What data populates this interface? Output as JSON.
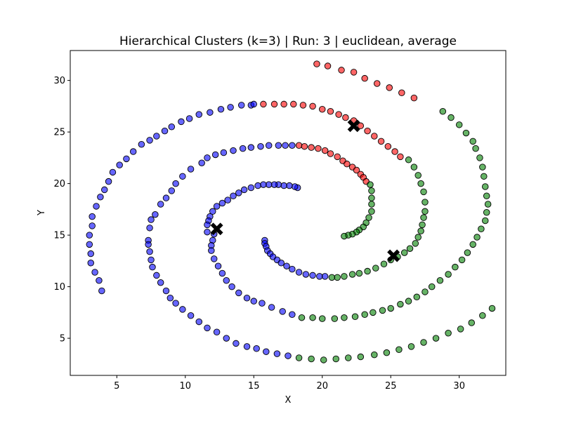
{
  "chart_data": {
    "type": "scatter",
    "title": "Hierarchical Clusters (k=3) | Run: 3 | euclidean, average",
    "xlabel": "X",
    "ylabel": "Y",
    "xlim": [
      1.6,
      33.4
    ],
    "ylim": [
      1.4,
      32.9
    ],
    "xticks": [
      5,
      10,
      15,
      20,
      25,
      30
    ],
    "yticks": [
      5,
      10,
      15,
      20,
      25,
      30
    ],
    "grid": false,
    "colors": {
      "blue": "#0000ff",
      "red": "#ff0000",
      "green": "#008000",
      "centroid": "#000000",
      "point_edge": "#000000"
    },
    "series": [
      {
        "color": "blue",
        "points": [
          [
            3.9,
            9.6
          ],
          [
            3.7,
            10.6
          ],
          [
            3.4,
            11.4
          ],
          [
            3.1,
            12.3
          ],
          [
            3.1,
            13.2
          ],
          [
            3.0,
            14.1
          ],
          [
            3.0,
            15.0
          ],
          [
            3.2,
            15.9
          ],
          [
            3.2,
            16.8
          ],
          [
            3.5,
            17.8
          ],
          [
            3.8,
            18.7
          ],
          [
            4.1,
            19.4
          ],
          [
            4.4,
            20.2
          ],
          [
            4.7,
            21.1
          ],
          [
            5.2,
            21.8
          ],
          [
            5.7,
            22.4
          ],
          [
            6.2,
            23.1
          ],
          [
            6.8,
            23.8
          ],
          [
            7.4,
            24.2
          ],
          [
            7.9,
            24.6
          ],
          [
            8.5,
            25.1
          ],
          [
            9.0,
            25.5
          ],
          [
            9.7,
            26.0
          ],
          [
            10.3,
            26.3
          ],
          [
            11.0,
            26.7
          ],
          [
            11.8,
            26.9
          ],
          [
            12.6,
            27.2
          ],
          [
            13.3,
            27.4
          ],
          [
            14.1,
            27.6
          ],
          [
            14.8,
            27.6
          ],
          [
            15.0,
            27.7
          ],
          [
            11.2,
            22.0
          ],
          [
            10.4,
            21.4
          ],
          [
            9.8,
            20.7
          ],
          [
            9.3,
            20.0
          ],
          [
            9.0,
            19.3
          ],
          [
            8.6,
            18.6
          ],
          [
            8.2,
            18.0
          ],
          [
            7.8,
            17.0
          ],
          [
            7.5,
            16.5
          ],
          [
            7.4,
            15.7
          ],
          [
            7.3,
            14.5
          ],
          [
            7.3,
            14.1
          ],
          [
            7.4,
            13.4
          ],
          [
            7.5,
            12.6
          ],
          [
            7.6,
            11.9
          ],
          [
            7.9,
            11.1
          ],
          [
            8.2,
            10.4
          ],
          [
            8.6,
            9.6
          ],
          [
            8.9,
            8.9
          ],
          [
            9.3,
            8.4
          ],
          [
            9.8,
            7.8
          ],
          [
            10.4,
            7.2
          ],
          [
            11.0,
            6.6
          ],
          [
            11.6,
            6.0
          ],
          [
            12.3,
            5.6
          ],
          [
            13.0,
            5.0
          ],
          [
            13.7,
            4.5
          ],
          [
            14.5,
            4.2
          ],
          [
            15.2,
            4.0
          ],
          [
            15.9,
            3.7
          ],
          [
            16.7,
            3.5
          ],
          [
            17.5,
            3.3
          ],
          [
            11.6,
            22.5
          ],
          [
            12.2,
            22.8
          ],
          [
            12.8,
            23.0
          ],
          [
            13.5,
            23.2
          ],
          [
            14.2,
            23.4
          ],
          [
            14.8,
            23.5
          ],
          [
            15.5,
            23.6
          ],
          [
            16.1,
            23.7
          ],
          [
            16.8,
            23.7
          ],
          [
            17.3,
            23.7
          ],
          [
            17.8,
            23.7
          ],
          [
            12.1,
            15.1
          ],
          [
            12.0,
            14.5
          ],
          [
            11.9,
            14.0
          ],
          [
            11.9,
            13.5
          ],
          [
            12.1,
            12.7
          ],
          [
            12.4,
            12.0
          ],
          [
            12.7,
            11.3
          ],
          [
            13.0,
            10.6
          ],
          [
            13.4,
            10.0
          ],
          [
            13.9,
            9.4
          ],
          [
            14.5,
            8.9
          ],
          [
            15.0,
            8.6
          ],
          [
            15.6,
            8.4
          ],
          [
            16.3,
            8.0
          ],
          [
            17.1,
            7.6
          ],
          [
            17.8,
            7.3
          ],
          [
            18.2,
            19.6
          ],
          [
            18.0,
            19.7
          ],
          [
            17.6,
            19.8
          ],
          [
            17.2,
            19.8
          ],
          [
            16.8,
            19.9
          ],
          [
            16.5,
            19.9
          ],
          [
            16.1,
            19.9
          ],
          [
            15.7,
            19.9
          ],
          [
            15.3,
            19.8
          ],
          [
            14.8,
            19.6
          ],
          [
            14.3,
            19.4
          ],
          [
            13.9,
            19.1
          ],
          [
            13.5,
            18.8
          ],
          [
            13.1,
            18.4
          ],
          [
            12.7,
            18.1
          ],
          [
            12.3,
            17.8
          ],
          [
            12.0,
            17.3
          ],
          [
            11.8,
            16.8
          ],
          [
            11.7,
            16.4
          ],
          [
            11.6,
            16.0
          ],
          [
            11.6,
            15.3
          ],
          [
            15.8,
            14.5
          ],
          [
            15.8,
            14.2
          ],
          [
            15.9,
            13.9
          ],
          [
            16.0,
            13.5
          ],
          [
            16.2,
            13.2
          ],
          [
            16.4,
            12.9
          ],
          [
            16.7,
            12.6
          ],
          [
            17.0,
            12.3
          ],
          [
            17.4,
            12.0
          ],
          [
            17.8,
            11.7
          ],
          [
            18.3,
            11.4
          ],
          [
            18.8,
            11.2
          ],
          [
            19.3,
            11.1
          ],
          [
            19.8,
            11.0
          ],
          [
            20.2,
            11.0
          ]
        ]
      },
      {
        "color": "red",
        "points": [
          [
            15.7,
            27.7
          ],
          [
            16.5,
            27.7
          ],
          [
            17.2,
            27.7
          ],
          [
            17.9,
            27.7
          ],
          [
            18.6,
            27.6
          ],
          [
            19.3,
            27.5
          ],
          [
            20.0,
            27.2
          ],
          [
            20.6,
            27.0
          ],
          [
            21.2,
            26.7
          ],
          [
            21.7,
            26.4
          ],
          [
            22.3,
            26.1
          ],
          [
            22.8,
            25.6
          ],
          [
            23.3,
            25.1
          ],
          [
            23.8,
            24.6
          ],
          [
            24.3,
            24.1
          ],
          [
            24.8,
            23.6
          ],
          [
            25.3,
            23.1
          ],
          [
            25.7,
            22.6
          ],
          [
            19.6,
            31.6
          ],
          [
            20.4,
            31.4
          ],
          [
            21.4,
            31.0
          ],
          [
            22.3,
            30.8
          ],
          [
            23.1,
            30.2
          ],
          [
            24.0,
            29.7
          ],
          [
            24.9,
            29.3
          ],
          [
            25.8,
            28.8
          ],
          [
            26.7,
            28.3
          ],
          [
            18.3,
            23.7
          ],
          [
            18.7,
            23.6
          ],
          [
            19.2,
            23.5
          ],
          [
            19.7,
            23.4
          ],
          [
            20.2,
            23.2
          ],
          [
            20.6,
            22.9
          ],
          [
            21.1,
            22.6
          ],
          [
            21.5,
            22.2
          ],
          [
            21.8,
            21.9
          ],
          [
            22.2,
            21.6
          ],
          [
            22.5,
            21.3
          ],
          [
            22.8,
            20.9
          ],
          [
            23.0,
            20.6
          ],
          [
            23.2,
            20.2
          ]
        ]
      },
      {
        "color": "green",
        "points": [
          [
            26.3,
            22.3
          ],
          [
            26.7,
            21.6
          ],
          [
            27.0,
            20.8
          ],
          [
            27.2,
            20.0
          ],
          [
            27.4,
            19.2
          ],
          [
            27.5,
            18.2
          ],
          [
            27.5,
            17.3
          ],
          [
            27.4,
            16.7
          ],
          [
            27.3,
            16.0
          ],
          [
            27.2,
            15.4
          ],
          [
            27.0,
            14.8
          ],
          [
            26.8,
            14.2
          ],
          [
            26.4,
            13.7
          ],
          [
            26.0,
            13.3
          ],
          [
            25.5,
            12.9
          ],
          [
            25.0,
            12.6
          ],
          [
            24.5,
            12.2
          ],
          [
            23.9,
            11.8
          ],
          [
            23.3,
            11.5
          ],
          [
            22.7,
            11.3
          ],
          [
            22.2,
            11.2
          ],
          [
            21.6,
            11.0
          ],
          [
            21.1,
            10.9
          ],
          [
            20.7,
            10.9
          ],
          [
            28.8,
            27.0
          ],
          [
            29.4,
            26.4
          ],
          [
            30.0,
            25.7
          ],
          [
            30.5,
            24.9
          ],
          [
            31.0,
            24.1
          ],
          [
            31.2,
            23.4
          ],
          [
            31.5,
            22.5
          ],
          [
            31.7,
            21.6
          ],
          [
            31.8,
            20.7
          ],
          [
            31.9,
            19.7
          ],
          [
            32.0,
            18.8
          ],
          [
            32.1,
            18.0
          ],
          [
            32.0,
            17.2
          ],
          [
            31.9,
            16.4
          ],
          [
            31.6,
            15.6
          ],
          [
            31.3,
            14.8
          ],
          [
            31.0,
            14.1
          ],
          [
            30.6,
            13.3
          ],
          [
            30.2,
            12.6
          ],
          [
            29.7,
            11.9
          ],
          [
            29.2,
            11.2
          ],
          [
            28.6,
            10.6
          ],
          [
            28.0,
            10.0
          ],
          [
            27.5,
            9.5
          ],
          [
            26.9,
            9.0
          ],
          [
            26.3,
            8.6
          ],
          [
            25.7,
            8.3
          ],
          [
            25.0,
            7.9
          ],
          [
            24.4,
            7.7
          ],
          [
            23.7,
            7.5
          ],
          [
            23.1,
            7.3
          ],
          [
            22.4,
            7.1
          ],
          [
            21.6,
            7.0
          ],
          [
            20.9,
            6.9
          ],
          [
            20.0,
            6.9
          ],
          [
            19.3,
            7.0
          ],
          [
            18.5,
            7.0
          ],
          [
            18.3,
            3.1
          ],
          [
            19.2,
            3.0
          ],
          [
            20.1,
            2.9
          ],
          [
            21.0,
            3.0
          ],
          [
            21.9,
            3.1
          ],
          [
            22.8,
            3.2
          ],
          [
            23.8,
            3.4
          ],
          [
            24.7,
            3.6
          ],
          [
            25.6,
            3.9
          ],
          [
            26.5,
            4.2
          ],
          [
            27.4,
            4.6
          ],
          [
            28.3,
            5.0
          ],
          [
            29.2,
            5.5
          ],
          [
            30.1,
            5.9
          ],
          [
            30.9,
            6.5
          ],
          [
            31.7,
            7.2
          ],
          [
            32.4,
            7.9
          ],
          [
            23.5,
            19.9
          ],
          [
            23.6,
            19.3
          ],
          [
            23.6,
            18.6
          ],
          [
            23.6,
            18.0
          ],
          [
            23.6,
            17.3
          ],
          [
            23.4,
            16.7
          ],
          [
            23.2,
            16.2
          ],
          [
            23.0,
            15.8
          ],
          [
            22.7,
            15.5
          ],
          [
            22.5,
            15.3
          ],
          [
            22.2,
            15.1
          ],
          [
            21.9,
            15.0
          ],
          [
            21.6,
            14.9
          ]
        ]
      }
    ],
    "centroids": [
      [
        12.3,
        15.6
      ],
      [
        22.3,
        25.6
      ],
      [
        25.2,
        13.0
      ]
    ]
  }
}
